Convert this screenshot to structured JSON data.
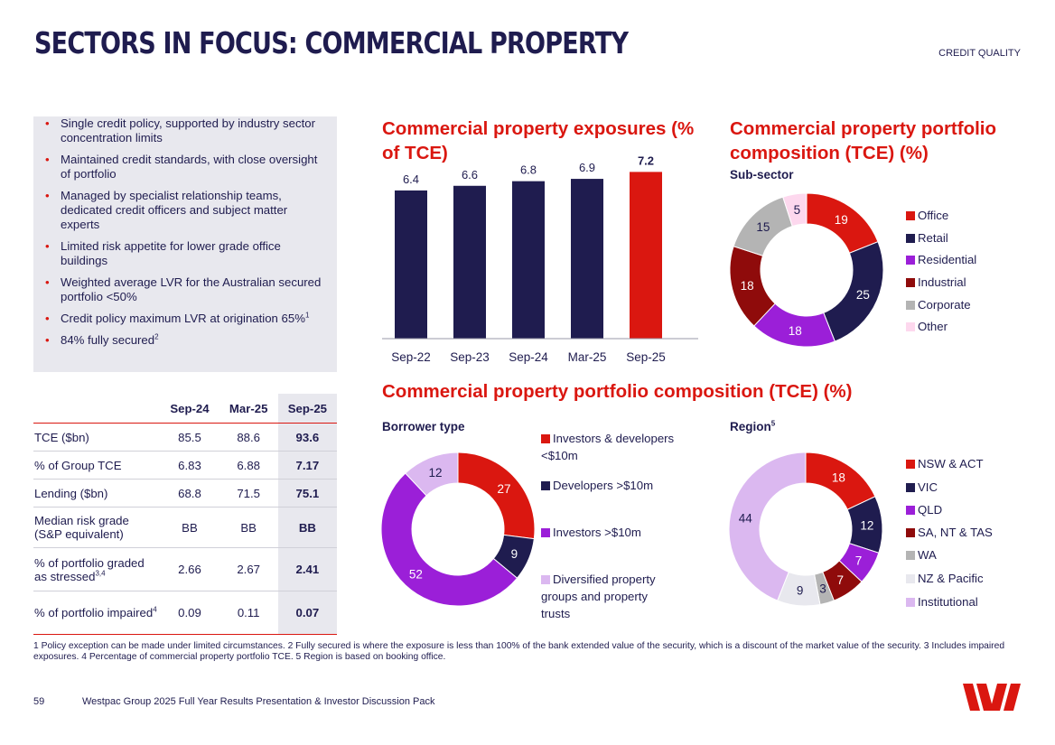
{
  "header": {
    "title": "SECTORS IN FOCUS: COMMERCIAL PROPERTY",
    "section": "CREDIT QUALITY"
  },
  "bullets": [
    {
      "text": "Single credit policy, supported by industry sector concentration limits",
      "sup": ""
    },
    {
      "text": "Maintained credit standards, with close oversight of portfolio",
      "sup": ""
    },
    {
      "text": "Managed by specialist relationship teams, dedicated credit officers and subject matter experts",
      "sup": ""
    },
    {
      "text": "Limited risk appetite for lower grade office buildings",
      "sup": ""
    },
    {
      "text": "Weighted average LVR for the Australian secured portfolio <50%",
      "sup": ""
    },
    {
      "text": "Credit policy maximum LVR at origination 65%",
      "sup": "1"
    },
    {
      "text": "84% fully secured",
      "sup": "2"
    }
  ],
  "table": {
    "headers": [
      "Sep-24",
      "Mar-25",
      "Sep-25"
    ],
    "rows": [
      {
        "label": "TCE ($bn)",
        "sup": "",
        "values": [
          "85.5",
          "88.6",
          "93.6"
        ]
      },
      {
        "label": "% of Group TCE",
        "sup": "",
        "values": [
          "6.83",
          "6.88",
          "7.17"
        ]
      },
      {
        "label": "Lending ($bn)",
        "sup": "",
        "values": [
          "68.8",
          "71.5",
          "75.1"
        ]
      },
      {
        "label": "Median risk grade (S&P equivalent)",
        "sup": "",
        "values": [
          "BB",
          "BB",
          "BB"
        ]
      },
      {
        "label": "% of portfolio graded as stressed",
        "sup": "3,4",
        "values": [
          "2.66",
          "2.67",
          "2.41"
        ]
      },
      {
        "label": "% of portfolio impaired",
        "sup": "4",
        "values": [
          "0.09",
          "0.11",
          "0.07"
        ]
      }
    ]
  },
  "headings": {
    "exposures": "Commercial property exposures (% of TCE)",
    "composition_top": "Commercial property portfolio composition (TCE) (%)",
    "composition_bottom": "Commercial property portfolio composition (TCE) (%)"
  },
  "colors": {
    "navy": "#1f1c4f",
    "red": "#da1710",
    "purple": "#9b1fd8",
    "maroon": "#8f0b0b",
    "grey": "#b4b4b4",
    "pink": "#fdd8ee",
    "lightgrey": "#e8e8ee",
    "lavender": "#dbb8f0"
  },
  "chart_data": [
    {
      "type": "bar",
      "categories": [
        "Sep-22",
        "Sep-23",
        "Sep-24",
        "Mar-25",
        "Sep-25"
      ],
      "values": [
        6.4,
        6.6,
        6.8,
        6.9,
        7.2
      ],
      "value_labels": [
        "6.4",
        "6.6",
        "6.8",
        "6.9",
        "7.2"
      ],
      "bar_colors": [
        "#1f1c4f",
        "#1f1c4f",
        "#1f1c4f",
        "#1f1c4f",
        "#da1710"
      ],
      "ylim": [
        0,
        7.8
      ]
    },
    {
      "type": "pie",
      "subtitle": "Sub-sector",
      "labels": [
        "Office",
        "Retail",
        "Residential",
        "Industrial",
        "Corporate",
        "Other"
      ],
      "values": [
        19,
        25,
        18,
        18,
        15,
        5
      ],
      "colors": [
        "#da1710",
        "#1f1c4f",
        "#9b1fd8",
        "#8f0b0b",
        "#b4b4b4",
        "#fdd8ee"
      ],
      "label_colors": [
        "#ffffff",
        "#ffffff",
        "#ffffff",
        "#ffffff",
        "#1f1c4f",
        "#1f1c4f"
      ]
    },
    {
      "type": "pie",
      "subtitle": "Borrower type",
      "labels": [
        "Investors & developers <$10m",
        "Developers >$10m",
        "Investors >$10m",
        "Diversified property groups and property trusts"
      ],
      "values": [
        27,
        9,
        52,
        12
      ],
      "colors": [
        "#da1710",
        "#1f1c4f",
        "#9b1fd8",
        "#dbb8f0"
      ],
      "label_colors": [
        "#ffffff",
        "#ffffff",
        "#ffffff",
        "#1f1c4f"
      ]
    },
    {
      "type": "pie",
      "subtitle": "Region",
      "subtitle_sup": "5",
      "labels": [
        "NSW & ACT",
        "VIC",
        "QLD",
        "SA, NT & TAS",
        "WA",
        "NZ & Pacific",
        "Institutional"
      ],
      "values": [
        18,
        12,
        7,
        7,
        3,
        9,
        44
      ],
      "colors": [
        "#da1710",
        "#1f1c4f",
        "#9b1fd8",
        "#8f0b0b",
        "#b4b4b4",
        "#e8e8ee",
        "#dbb8f0"
      ],
      "label_colors": [
        "#ffffff",
        "#ffffff",
        "#ffffff",
        "#ffffff",
        "#1f1c4f",
        "#1f1c4f",
        "#1f1c4f"
      ]
    }
  ],
  "footnote": "1 Policy exception can be made under limited circumstances. 2 Fully secured is where the exposure is less than 100% of the bank extended value of the security, which is a discount of the market value of the security. 3 Includes impaired exposures. 4 Percentage of commercial property portfolio TCE. 5 Region is based on booking office.",
  "footer": {
    "page": "59",
    "text": "Westpac Group 2025 Full Year Results Presentation & Investor Discussion Pack"
  }
}
